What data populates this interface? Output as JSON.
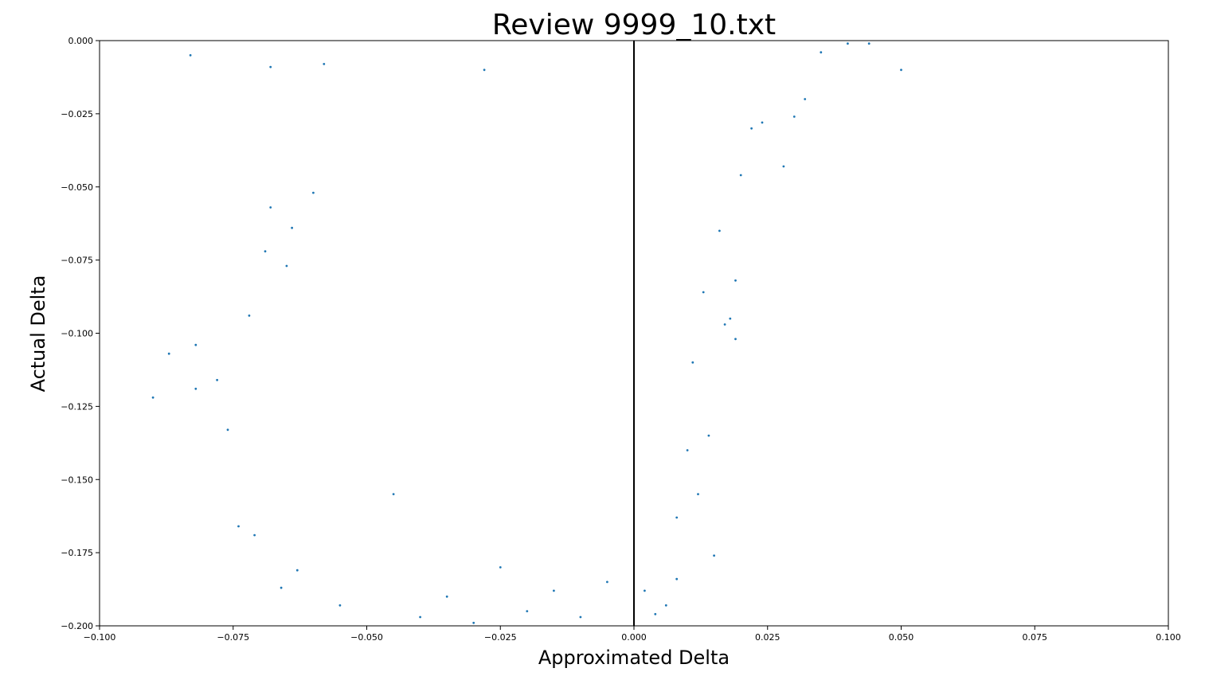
{
  "chart_data": {
    "type": "scatter",
    "title": "Review 9999_10.txt",
    "xlabel": "Approximated Delta",
    "ylabel": "Actual Delta",
    "xlim": [
      -0.1,
      0.1
    ],
    "ylim": [
      -0.2,
      0.0
    ],
    "x_ticks": [
      "−0.100",
      "−0.075",
      "−0.050",
      "−0.025",
      "0.000",
      "0.025",
      "0.050",
      "0.075",
      "0.100"
    ],
    "y_ticks": [
      "0.000",
      "−0.025",
      "−0.050",
      "−0.075",
      "−0.100",
      "−0.125",
      "−0.150",
      "−0.175",
      "−0.200"
    ],
    "grid": false,
    "reference_line": {
      "x": 0.0,
      "color": "#000000"
    },
    "point_color": "#1f77b4",
    "points": [
      [
        -0.09,
        -0.122
      ],
      [
        -0.087,
        -0.107
      ],
      [
        -0.083,
        -0.005
      ],
      [
        -0.082,
        -0.104
      ],
      [
        -0.082,
        -0.119
      ],
      [
        -0.078,
        -0.116
      ],
      [
        -0.076,
        -0.133
      ],
      [
        -0.074,
        -0.166
      ],
      [
        -0.072,
        -0.094
      ],
      [
        -0.071,
        -0.169
      ],
      [
        -0.069,
        -0.072
      ],
      [
        -0.068,
        -0.057
      ],
      [
        -0.068,
        -0.009
      ],
      [
        -0.066,
        -0.187
      ],
      [
        -0.065,
        -0.077
      ],
      [
        -0.064,
        -0.064
      ],
      [
        -0.063,
        -0.181
      ],
      [
        -0.06,
        -0.052
      ],
      [
        -0.058,
        -0.008
      ],
      [
        -0.055,
        -0.193
      ],
      [
        -0.045,
        -0.155
      ],
      [
        -0.04,
        -0.197
      ],
      [
        -0.035,
        -0.19
      ],
      [
        -0.03,
        -0.199
      ],
      [
        -0.028,
        -0.01
      ],
      [
        -0.025,
        -0.18
      ],
      [
        -0.02,
        -0.195
      ],
      [
        -0.015,
        -0.188
      ],
      [
        -0.01,
        -0.197
      ],
      [
        -0.005,
        -0.185
      ],
      [
        0.002,
        -0.188
      ],
      [
        0.004,
        -0.196
      ],
      [
        0.006,
        -0.193
      ],
      [
        0.008,
        -0.184
      ],
      [
        0.008,
        -0.163
      ],
      [
        0.01,
        -0.14
      ],
      [
        0.011,
        -0.11
      ],
      [
        0.012,
        -0.155
      ],
      [
        0.013,
        -0.086
      ],
      [
        0.014,
        -0.135
      ],
      [
        0.015,
        -0.176
      ],
      [
        0.016,
        -0.065
      ],
      [
        0.017,
        -0.097
      ],
      [
        0.018,
        -0.095
      ],
      [
        0.019,
        -0.082
      ],
      [
        0.019,
        -0.102
      ],
      [
        0.02,
        -0.046
      ],
      [
        0.022,
        -0.03
      ],
      [
        0.024,
        -0.028
      ],
      [
        0.028,
        -0.043
      ],
      [
        0.03,
        -0.026
      ],
      [
        0.032,
        -0.02
      ],
      [
        0.035,
        -0.004
      ],
      [
        0.04,
        -0.001
      ],
      [
        0.044,
        -0.001
      ],
      [
        0.05,
        -0.01
      ]
    ]
  }
}
